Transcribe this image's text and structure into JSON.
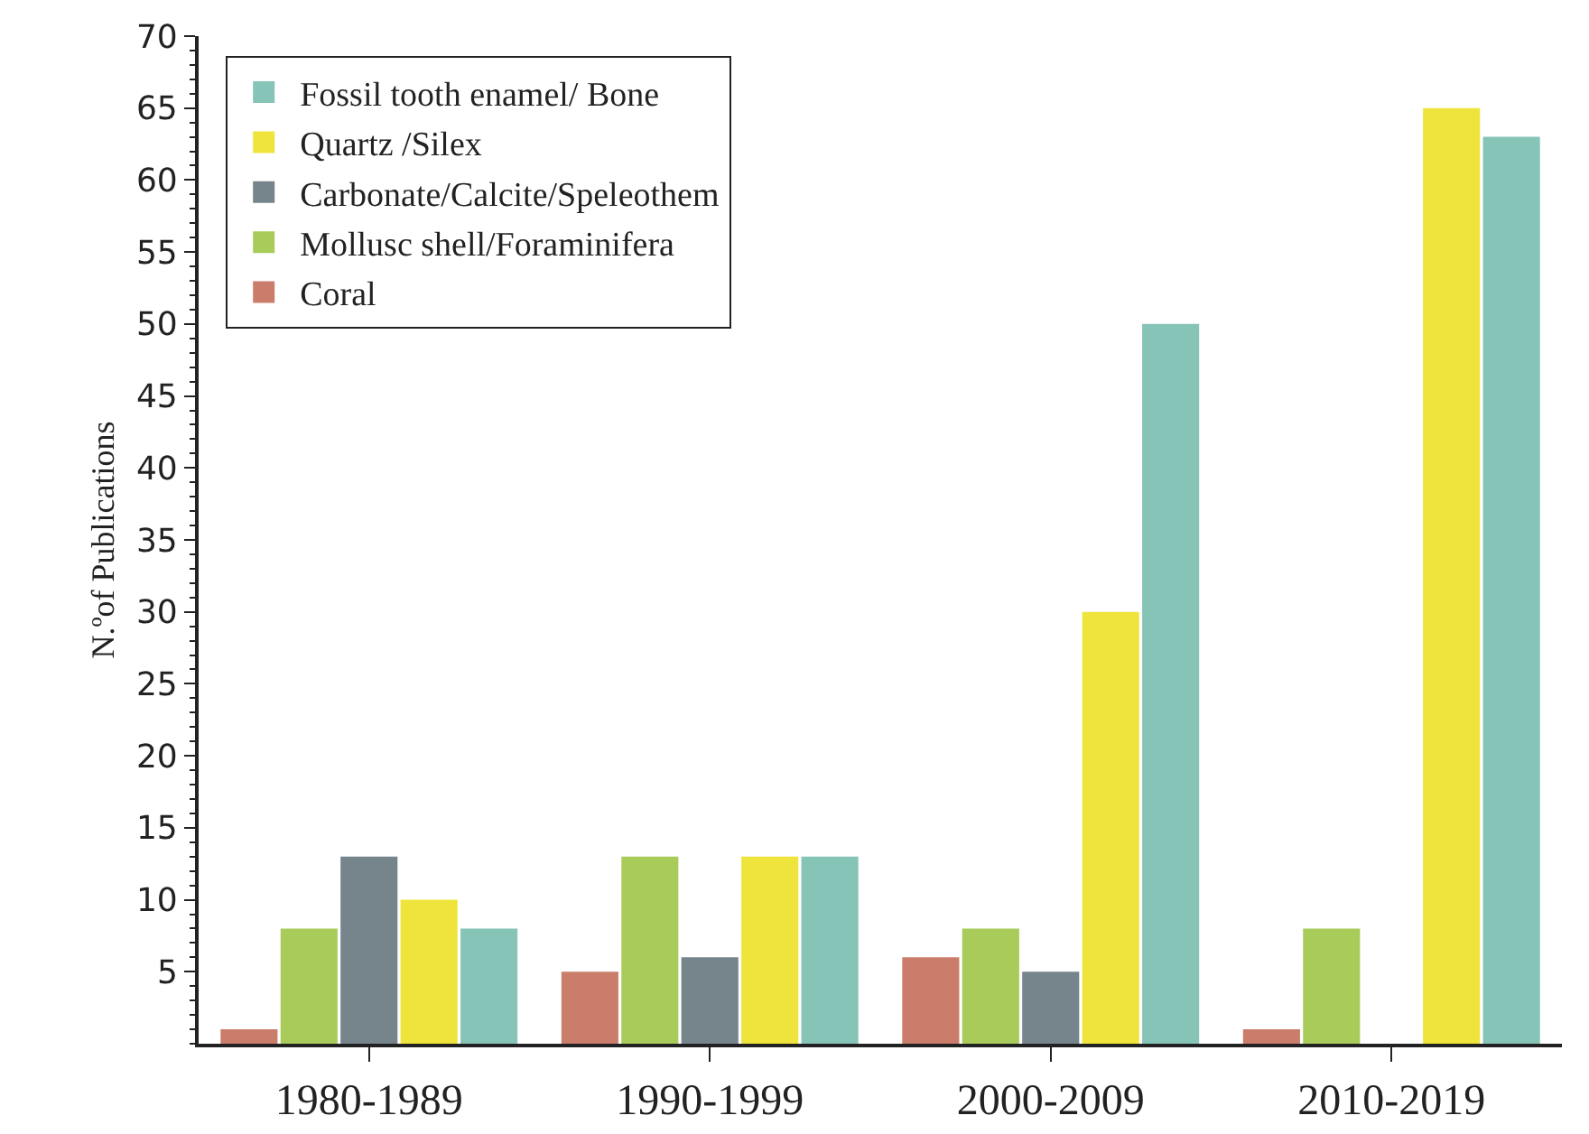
{
  "chart_data": {
    "type": "bar",
    "ylabel": "N.ºof Publications",
    "categories": [
      "1980-1989",
      "1990-1999",
      "2000-2009",
      "2010-2019"
    ],
    "series": [
      {
        "name": "Coral",
        "color": "#c97d6a",
        "values": [
          1,
          5,
          6,
          1
        ]
      },
      {
        "name": "Mollusc shell/Foraminifera",
        "color": "#a8cb5a",
        "values": [
          8,
          13,
          8,
          8
        ]
      },
      {
        "name": "Carbonate/Calcite/Speleothem",
        "color": "#76848c",
        "values": [
          13,
          6,
          5,
          null
        ]
      },
      {
        "name": "Quartz /Silex",
        "color": "#eee43c",
        "values": [
          10,
          13,
          30,
          65
        ]
      },
      {
        "name": "Fossil tooth enamel/ Bone",
        "color": "#86c4b8",
        "values": [
          8,
          13,
          50,
          63
        ]
      }
    ],
    "ylim": [
      0,
      70
    ],
    "yticks": [
      5,
      10,
      15,
      20,
      25,
      30,
      35,
      40,
      45,
      50,
      55,
      60,
      65,
      70
    ],
    "grid": false,
    "legend": "top left"
  }
}
